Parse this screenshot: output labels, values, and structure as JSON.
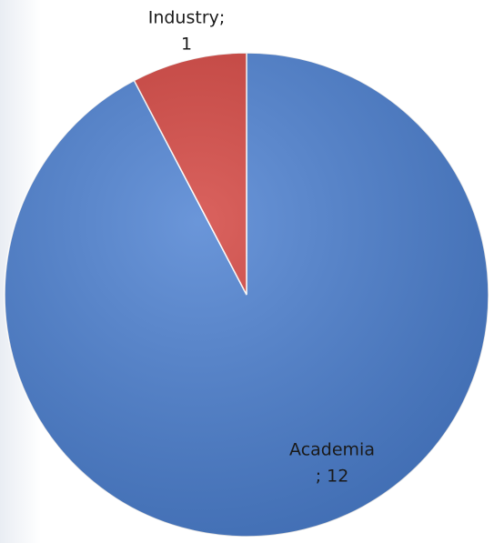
{
  "chart_data": {
    "type": "pie",
    "values": [
      12,
      1
    ],
    "value_labels": [
      [
        "Academia",
        "; 12"
      ],
      [
        "Industry;",
        "1"
      ]
    ],
    "colors": [
      "#4a7fd1",
      "#d2403b"
    ],
    "start_angle": 0,
    "direction": "counterclockwise_from_top_for_last"
  }
}
